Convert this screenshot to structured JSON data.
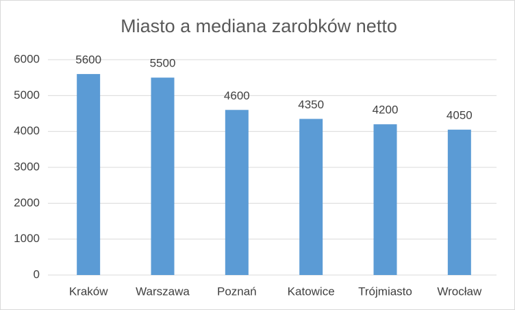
{
  "chart_data": {
    "type": "bar",
    "title": "Miasto a mediana zarobków netto",
    "categories": [
      "Kraków",
      "Warszawa",
      "Poznań",
      "Katowice",
      "Trójmiasto",
      "Wrocław"
    ],
    "values": [
      5600,
      5500,
      4600,
      4350,
      4200,
      4050
    ],
    "color": "#5b9bd5",
    "ylim": [
      0,
      6000
    ],
    "yticks": [
      0,
      1000,
      2000,
      3000,
      4000,
      5000,
      6000
    ],
    "grid": true
  }
}
